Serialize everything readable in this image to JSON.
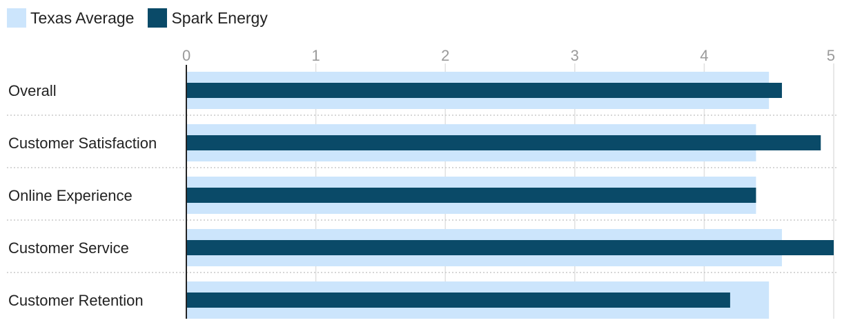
{
  "chart_data": {
    "type": "bar",
    "orientation": "horizontal",
    "categories": [
      "Overall",
      "Customer Satisfaction",
      "Online Experience",
      "Customer Service",
      "Customer Retention"
    ],
    "series": [
      {
        "name": "Texas Average",
        "values": [
          4.5,
          4.4,
          4.4,
          4.6,
          4.5
        ],
        "color": "#cce5fc"
      },
      {
        "name": "Spark Energy",
        "values": [
          4.6,
          4.9,
          4.4,
          5.0,
          4.2
        ],
        "color": "#0a4a68"
      }
    ],
    "x_ticks": [
      "0",
      "1",
      "2",
      "3",
      "4",
      "5"
    ],
    "xlim": [
      0,
      5
    ],
    "grid": true,
    "legend_position": "top-left"
  }
}
